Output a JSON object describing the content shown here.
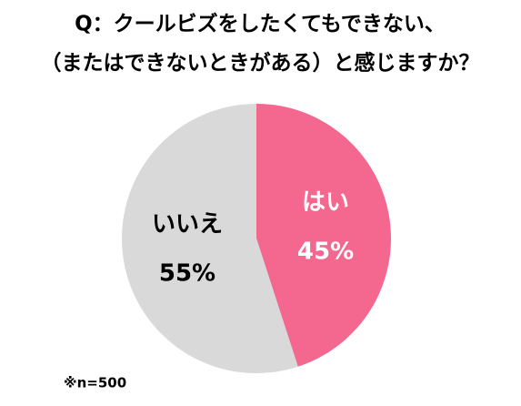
{
  "chart_data": {
    "type": "pie",
    "title": [
      "Q：クールビズをしたくてもできない、",
      "（またはできないときがある）と感じますか？"
    ],
    "categories": [
      "はい",
      "いいえ"
    ],
    "values": [
      45,
      55
    ],
    "value_labels": [
      "45%",
      "55%"
    ],
    "colors": [
      "#f4678f",
      "#d9d9d9"
    ],
    "note": "※n=500"
  }
}
